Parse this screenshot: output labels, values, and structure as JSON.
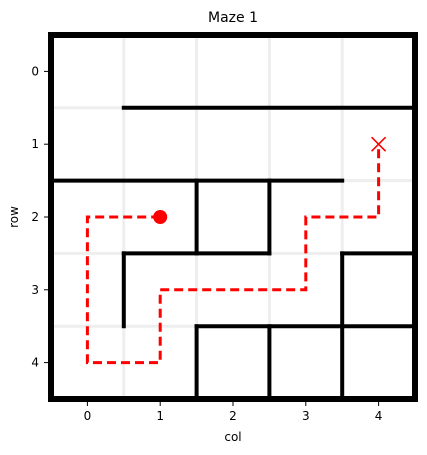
{
  "title": "Maze 1",
  "xlabel": "col",
  "ylabel": "row",
  "x_ticks": [
    "0",
    "1",
    "2",
    "3",
    "4"
  ],
  "y_ticks": [
    "0",
    "1",
    "2",
    "3",
    "4"
  ],
  "colors": {
    "wall": "#000000",
    "grid": "#eeeeee",
    "path": "#ff0000",
    "start": "#ff0000",
    "goal": "#ff0000"
  },
  "chart_data": {
    "type": "maze",
    "rows": 5,
    "cols": 5,
    "xlim": [
      -0.5,
      4.5
    ],
    "ylim": [
      4.5,
      -0.5
    ],
    "start": {
      "row": 2,
      "col": 1
    },
    "goal": {
      "row": 1,
      "col": 4
    },
    "walls": [
      {
        "from": [
          0.5,
          0.5
        ],
        "to": [
          4.5,
          0.5
        ]
      },
      {
        "from": [
          -0.5,
          1.5
        ],
        "to": [
          3.5,
          1.5
        ]
      },
      {
        "from": [
          1.5,
          1.5
        ],
        "to": [
          1.5,
          2.5
        ]
      },
      {
        "from": [
          2.5,
          1.5
        ],
        "to": [
          2.5,
          2.5
        ]
      },
      {
        "from": [
          0.5,
          2.5
        ],
        "to": [
          2.5,
          2.5
        ]
      },
      {
        "from": [
          3.5,
          2.5
        ],
        "to": [
          4.5,
          2.5
        ]
      },
      {
        "from": [
          0.5,
          2.5
        ],
        "to": [
          0.5,
          3.5
        ]
      },
      {
        "from": [
          3.5,
          2.5
        ],
        "to": [
          3.5,
          4.5
        ]
      },
      {
        "from": [
          1.5,
          3.5
        ],
        "to": [
          4.5,
          3.5
        ]
      },
      {
        "from": [
          1.5,
          3.5
        ],
        "to": [
          1.5,
          4.5
        ]
      },
      {
        "from": [
          2.5,
          3.5
        ],
        "to": [
          2.5,
          4.5
        ]
      }
    ],
    "path": [
      [
        1,
        2
      ],
      [
        0,
        2
      ],
      [
        0,
        4
      ],
      [
        1,
        4
      ],
      [
        1,
        3
      ],
      [
        3,
        3
      ],
      [
        3,
        2
      ],
      [
        4,
        2
      ],
      [
        4,
        1
      ]
    ],
    "grid": true
  }
}
